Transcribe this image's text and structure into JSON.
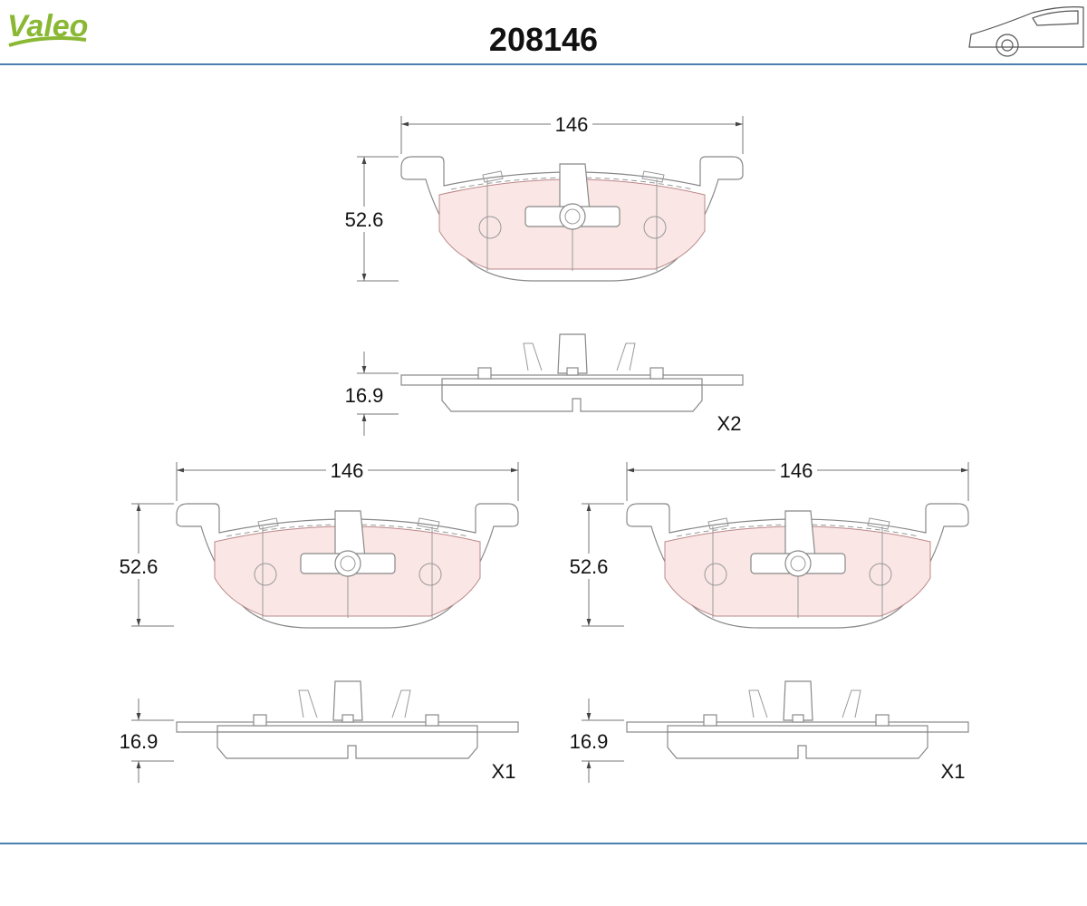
{
  "header": {
    "brand": "Valeo",
    "part_number": "208146"
  },
  "drawings": [
    {
      "width": 146,
      "height": 52.6,
      "thickness": 16.9,
      "quantity": "X2"
    },
    {
      "width": 146,
      "height": 52.6,
      "thickness": 16.9,
      "quantity": "X1"
    },
    {
      "width": 146,
      "height": 52.6,
      "thickness": 16.9,
      "quantity": "X1"
    }
  ]
}
